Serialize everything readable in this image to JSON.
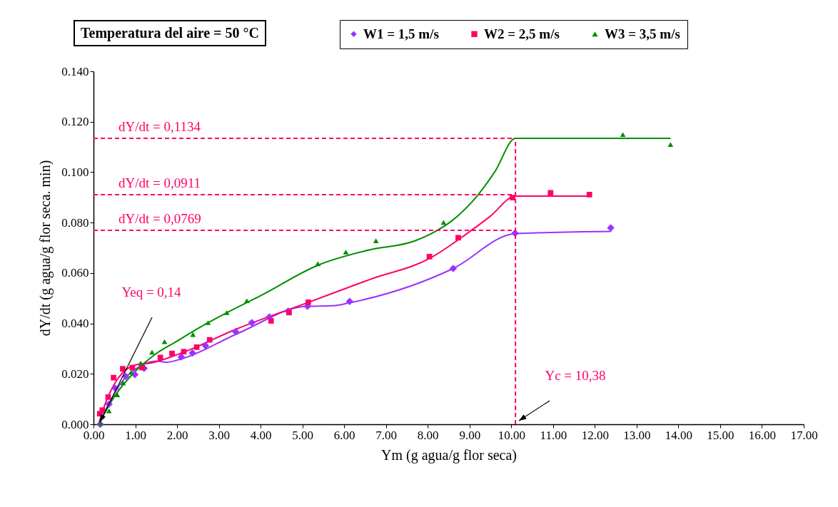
{
  "chart_data": {
    "type": "scatter",
    "title": "Temperatura del aire = 50 °C",
    "xlabel": "Ym (g agua/g flor seca)",
    "ylabel": "dY/dt (g agua/g flor seca. min)",
    "xlim": [
      0,
      17
    ],
    "xticks": [
      {
        "value": 0,
        "label": "0.00"
      },
      {
        "value": 1,
        "label": "1.00"
      },
      {
        "value": 2,
        "label": "2.00"
      },
      {
        "value": 3,
        "label": "3.00"
      },
      {
        "value": 4,
        "label": "4.00"
      },
      {
        "value": 5,
        "label": "5.00"
      },
      {
        "value": 6,
        "label": "6.00"
      },
      {
        "value": 7,
        "label": "7.00"
      },
      {
        "value": 8,
        "label": "8.00"
      },
      {
        "value": 9,
        "label": "9.00"
      },
      {
        "value": 10,
        "label": "10.00"
      },
      {
        "value": 11,
        "label": "11.00"
      },
      {
        "value": 12,
        "label": "12.00"
      },
      {
        "value": 13,
        "label": "13.00"
      },
      {
        "value": 14,
        "label": "14.00"
      },
      {
        "value": 15,
        "label": "15.00"
      },
      {
        "value": 16,
        "label": "16.00"
      },
      {
        "value": 17,
        "label": "17.00"
      }
    ],
    "ylim": [
      0,
      0.14
    ],
    "yticks": [
      {
        "value": 0,
        "label": "0.000"
      },
      {
        "value": 0.02,
        "label": "0.020"
      },
      {
        "value": 0.04,
        "label": "0.040"
      },
      {
        "value": 0.06,
        "label": "0.060"
      },
      {
        "value": 0.08,
        "label": "0.080"
      },
      {
        "value": 0.1,
        "label": "0.100"
      },
      {
        "value": 0.12,
        "label": "0.120"
      },
      {
        "value": 0.14,
        "label": "0.140"
      }
    ],
    "grid": false,
    "legend": "top right",
    "series": [
      {
        "name": "W1 = 1,5 m/s",
        "marker": "diamond",
        "color": "#9933ff",
        "x": [
          0.16,
          0.37,
          0.52,
          0.77,
          0.99,
          1.21,
          2.1,
          2.37,
          2.68,
          3.4,
          3.79,
          4.21,
          4.66,
          5.12,
          6.13,
          8.61,
          10.09,
          12.38
        ],
        "values": [
          0.0,
          0.008,
          0.0143,
          0.019,
          0.0197,
          0.0222,
          0.0267,
          0.0283,
          0.0312,
          0.0368,
          0.0403,
          0.0426,
          0.0449,
          0.0468,
          0.0487,
          0.0618,
          0.0758,
          0.0779
        ]
      },
      {
        "name": "W2 = 2,5 m/s",
        "marker": "square",
        "color": "#ff0066",
        "x": [
          0.15,
          0.21,
          0.35,
          0.48,
          0.7,
          0.93,
          1.16,
          1.6,
          1.88,
          2.16,
          2.47,
          2.78,
          4.25,
          4.68,
          5.14,
          8.04,
          8.73,
          10.03,
          10.94,
          11.87
        ],
        "values": [
          0.0042,
          0.0056,
          0.0108,
          0.0185,
          0.022,
          0.0225,
          0.0225,
          0.0265,
          0.0281,
          0.0288,
          0.0306,
          0.0335,
          0.041,
          0.0443,
          0.0484,
          0.0665,
          0.074,
          0.0899,
          0.0918,
          0.0911
        ]
      },
      {
        "name": "W3 = 3,5 m/s",
        "marker": "triangle",
        "color": "#008e00",
        "x": [
          0.17,
          0.37,
          0.57,
          0.71,
          0.9,
          1.13,
          1.4,
          1.7,
          2.38,
          2.74,
          3.19,
          3.67,
          5.37,
          6.04,
          6.76,
          8.38,
          12.67,
          13.81
        ],
        "values": [
          0.0005,
          0.0053,
          0.0117,
          0.0164,
          0.0206,
          0.0243,
          0.0286,
          0.0328,
          0.0356,
          0.0403,
          0.0443,
          0.049,
          0.0637,
          0.0683,
          0.0728,
          0.0801,
          0.1149,
          0.111
        ]
      },
      {
        "type": "line",
        "color": "#9933ff",
        "x": [
          0.12,
          0.3,
          0.66,
          1.11,
          1.51,
          1.74,
          2.08,
          3.45,
          5.1,
          5.73,
          6.13,
          8.61,
          10.09,
          12.38
        ],
        "values": [
          0,
          0.006,
          0.0164,
          0.023,
          0.025,
          0.0246,
          0.0258,
          0.036,
          0.0468,
          0.047,
          0.0482,
          0.0618,
          0.0756,
          0.0765
        ]
      },
      {
        "type": "line",
        "color": "#ff0066",
        "x": [
          0.12,
          0.3,
          0.5,
          0.7,
          1,
          1.4,
          2.08,
          3.44,
          5.15,
          6.64,
          8.07,
          8.92,
          9.49,
          10.1,
          11.87
        ],
        "values": [
          0,
          0.009,
          0.016,
          0.0205,
          0.0235,
          0.0244,
          0.0281,
          0.0379,
          0.0484,
          0.0576,
          0.066,
          0.0754,
          0.0824,
          0.0905,
          0.0905
        ]
      },
      {
        "type": "line",
        "color": "#008e00",
        "x": [
          0.12,
          0.5,
          1,
          1.5,
          2,
          2.5,
          3.22,
          4,
          5.39,
          6.64,
          7.67,
          8.06,
          8.6,
          9.15,
          9.6,
          10.1,
          13.8
        ],
        "values": [
          0,
          0.011,
          0.021,
          0.028,
          0.033,
          0.038,
          0.0445,
          0.051,
          0.0632,
          0.0693,
          0.0726,
          0.0754,
          0.081,
          0.0899,
          0.1,
          0.1134,
          0.1134
        ]
      }
    ],
    "ref_lines": [
      {
        "axis": "y",
        "value": 0.1134,
        "label": "dY/dt = 0,1134",
        "color": "#ff0066",
        "line_style": "dashed"
      },
      {
        "axis": "y",
        "value": 0.0911,
        "label": "dY/dt = 0,0911",
        "color": "#ff0066",
        "line_style": "dashed"
      },
      {
        "axis": "y",
        "value": 0.0769,
        "label": "dY/dt = 0,0769",
        "color": "#ff0066",
        "line_style": "dashed"
      },
      {
        "axis": "x",
        "value": 10.1,
        "color": "#ff0066",
        "line_style": "dashed"
      }
    ],
    "annotations": [
      "Yeq = 0,14",
      "Yc = 10,38"
    ]
  }
}
